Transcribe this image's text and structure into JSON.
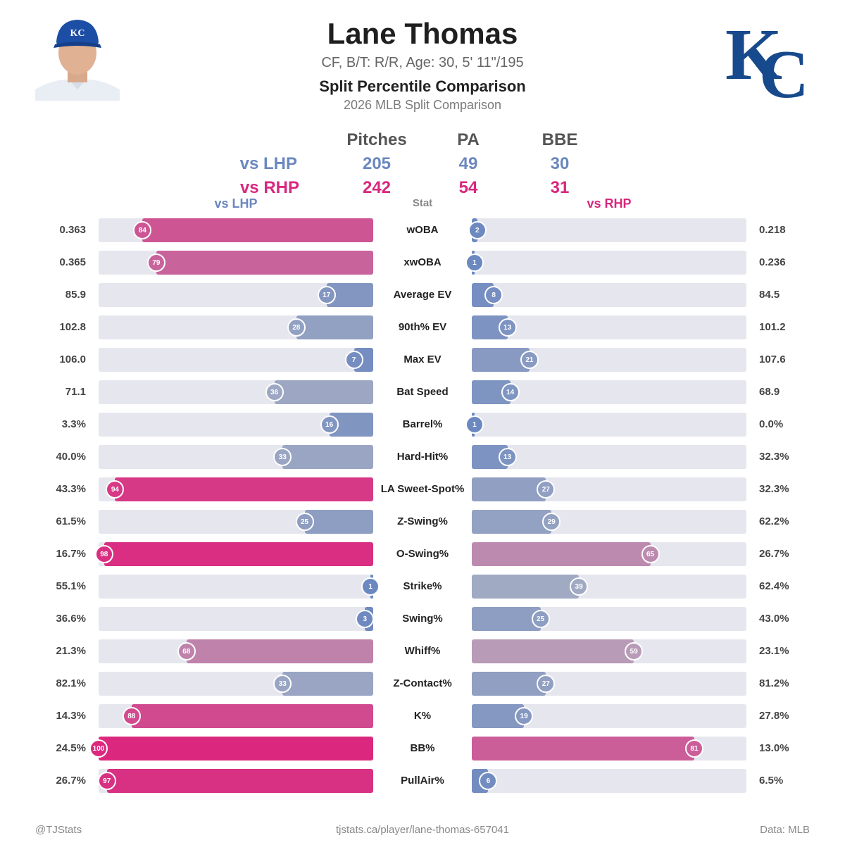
{
  "player": {
    "name": "Lane Thomas",
    "info": "CF, B/T: R/R, Age: 30, 5' 11\"/195"
  },
  "chart_title": "Split Percentile Comparison",
  "chart_subtitle": "2026 MLB Split Comparison",
  "summary": {
    "headers": [
      "Pitches",
      "PA",
      "BBE"
    ],
    "rows": [
      {
        "label": "vs LHP",
        "values": [
          "205",
          "49",
          "30"
        ]
      },
      {
        "label": "vs RHP",
        "values": [
          "242",
          "54",
          "31"
        ]
      }
    ]
  },
  "columns": {
    "left": "vs LHP",
    "stat": "Stat",
    "right": "vs RHP"
  },
  "colors": {
    "lhp_accent": "#6b87c0",
    "rhp_accent": "#d8277e",
    "track": "#e6e7ee"
  },
  "chart_data": {
    "type": "bar",
    "orientation": "horizontal-mirrored",
    "title": "Split Percentile Comparison",
    "series": [
      {
        "name": "vs LHP",
        "values": [
          84,
          79,
          17,
          28,
          7,
          36,
          16,
          33,
          94,
          25,
          98,
          1,
          3,
          68,
          33,
          88,
          100,
          97
        ]
      },
      {
        "name": "vs RHP",
        "values": [
          2,
          1,
          8,
          13,
          21,
          14,
          1,
          13,
          27,
          29,
          65,
          39,
          25,
          59,
          27,
          19,
          81,
          6
        ]
      }
    ],
    "xlim": [
      0,
      100
    ],
    "rows": [
      {
        "stat": "wOBA",
        "lhp_value": "0.363",
        "lhp_pct": 84,
        "rhp_value": "0.218",
        "rhp_pct": 2
      },
      {
        "stat": "xwOBA",
        "lhp_value": "0.365",
        "lhp_pct": 79,
        "rhp_value": "0.236",
        "rhp_pct": 1
      },
      {
        "stat": "Average EV",
        "lhp_value": "85.9",
        "lhp_pct": 17,
        "rhp_value": "84.5",
        "rhp_pct": 8
      },
      {
        "stat": "90th% EV",
        "lhp_value": "102.8",
        "lhp_pct": 28,
        "rhp_value": "101.2",
        "rhp_pct": 13
      },
      {
        "stat": "Max EV",
        "lhp_value": "106.0",
        "lhp_pct": 7,
        "rhp_value": "107.6",
        "rhp_pct": 21
      },
      {
        "stat": "Bat Speed",
        "lhp_value": "71.1",
        "lhp_pct": 36,
        "rhp_value": "68.9",
        "rhp_pct": 14
      },
      {
        "stat": "Barrel%",
        "lhp_value": "3.3%",
        "lhp_pct": 16,
        "rhp_value": "0.0%",
        "rhp_pct": 1
      },
      {
        "stat": "Hard-Hit%",
        "lhp_value": "40.0%",
        "lhp_pct": 33,
        "rhp_value": "32.3%",
        "rhp_pct": 13
      },
      {
        "stat": "LA Sweet-Spot%",
        "lhp_value": "43.3%",
        "lhp_pct": 94,
        "rhp_value": "32.3%",
        "rhp_pct": 27
      },
      {
        "stat": "Z-Swing%",
        "lhp_value": "61.5%",
        "lhp_pct": 25,
        "rhp_value": "62.2%",
        "rhp_pct": 29
      },
      {
        "stat": "O-Swing%",
        "lhp_value": "16.7%",
        "lhp_pct": 98,
        "rhp_value": "26.7%",
        "rhp_pct": 65
      },
      {
        "stat": "Strike%",
        "lhp_value": "55.1%",
        "lhp_pct": 1,
        "rhp_value": "62.4%",
        "rhp_pct": 39
      },
      {
        "stat": "Swing%",
        "lhp_value": "36.6%",
        "lhp_pct": 3,
        "rhp_value": "43.0%",
        "rhp_pct": 25
      },
      {
        "stat": "Whiff%",
        "lhp_value": "21.3%",
        "lhp_pct": 68,
        "rhp_value": "23.1%",
        "rhp_pct": 59
      },
      {
        "stat": "Z-Contact%",
        "lhp_value": "82.1%",
        "lhp_pct": 33,
        "rhp_value": "81.2%",
        "rhp_pct": 27
      },
      {
        "stat": "K%",
        "lhp_value": "14.3%",
        "lhp_pct": 88,
        "rhp_value": "27.8%",
        "rhp_pct": 19
      },
      {
        "stat": "BB%",
        "lhp_value": "24.5%",
        "lhp_pct": 100,
        "rhp_value": "13.0%",
        "rhp_pct": 81
      },
      {
        "stat": "PullAir%",
        "lhp_value": "26.7%",
        "lhp_pct": 97,
        "rhp_value": "6.5%",
        "rhp_pct": 6
      }
    ]
  },
  "footer": {
    "left": "@TJStats",
    "center": "tjstats.ca/player/lane-thomas-657041",
    "right": "Data: MLB"
  }
}
